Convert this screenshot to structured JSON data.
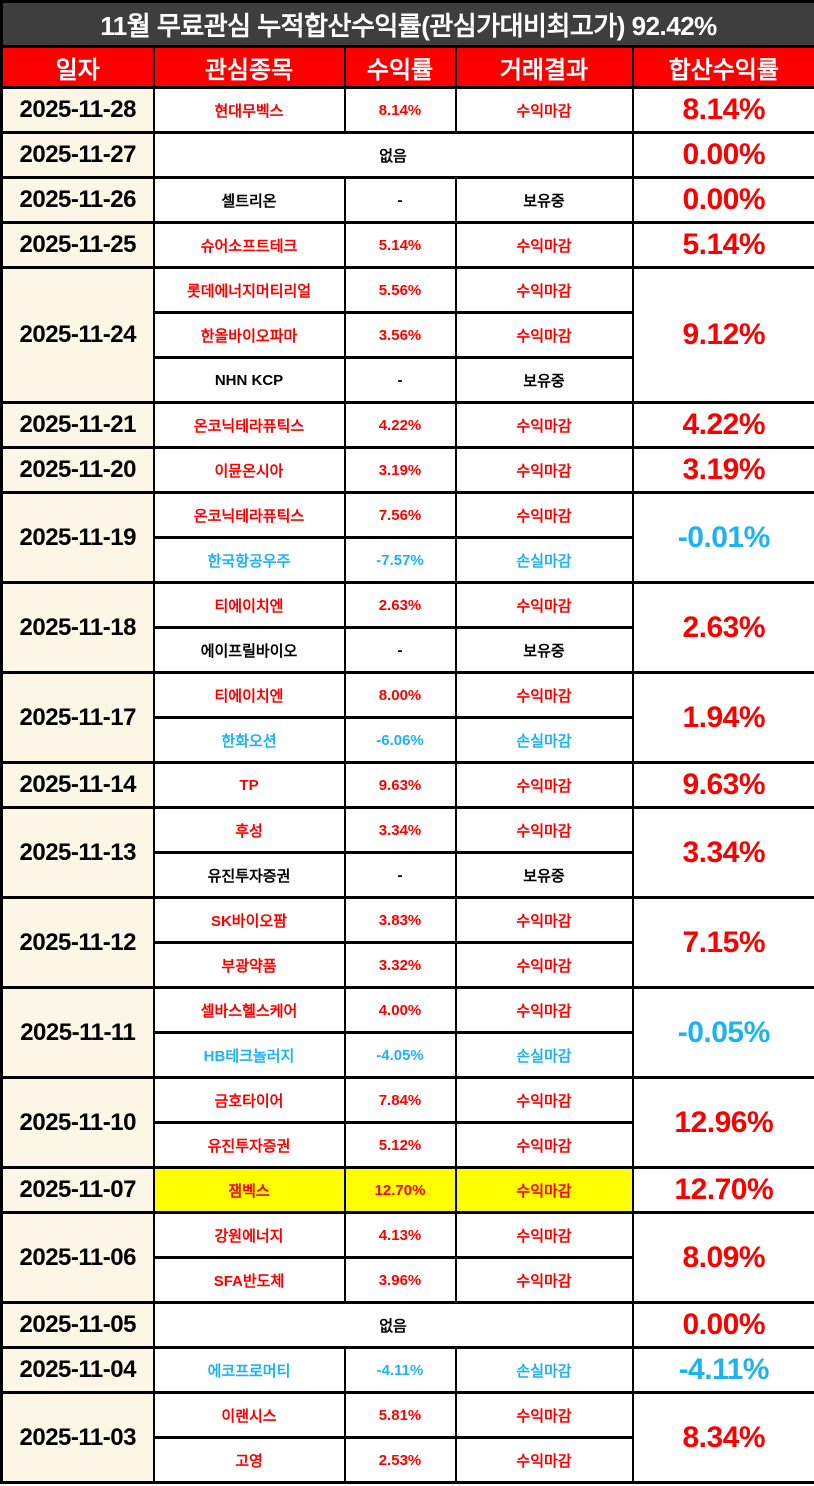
{
  "title": "11월 무료관심 누적합산수익률(관심가대비최고가) 92.42%",
  "columns": [
    "일자",
    "관심종목",
    "수익률",
    "거래결과",
    "합산수익률"
  ],
  "colors": {
    "title_bg": "#3E3E3E",
    "header_bg": "#FC0000",
    "date_bg": "#FBF6E6",
    "profit": "#FC0000",
    "loss": "#1EB2F1",
    "neutral": "#000000",
    "highlight": "#FFFF00"
  },
  "none_label": "없음",
  "groups": [
    {
      "date": "2025-11-28",
      "total": "8.14%",
      "tc": "profit",
      "entries": [
        {
          "stock": "현대무벡스",
          "ret": "8.14%",
          "res": "수익마감",
          "c": "profit"
        }
      ]
    },
    {
      "date": "2025-11-27",
      "total": "0.00%",
      "tc": "profit",
      "entries": [
        {
          "none": true
        }
      ]
    },
    {
      "date": "2025-11-26",
      "total": "0.00%",
      "tc": "profit",
      "entries": [
        {
          "stock": "셀트리온",
          "ret": "-",
          "res": "보유중",
          "c": "neutral"
        }
      ]
    },
    {
      "date": "2025-11-25",
      "total": "5.14%",
      "tc": "profit",
      "entries": [
        {
          "stock": "슈어소프트테크",
          "ret": "5.14%",
          "res": "수익마감",
          "c": "profit"
        }
      ]
    },
    {
      "date": "2025-11-24",
      "total": "9.12%",
      "tc": "profit",
      "entries": [
        {
          "stock": "롯데에너지머티리얼",
          "ret": "5.56%",
          "res": "수익마감",
          "c": "profit"
        },
        {
          "stock": "한올바이오파마",
          "ret": "3.56%",
          "res": "수익마감",
          "c": "profit"
        },
        {
          "stock": "NHN KCP",
          "ret": "-",
          "res": "보유중",
          "c": "neutral"
        }
      ]
    },
    {
      "date": "2025-11-21",
      "total": "4.22%",
      "tc": "profit",
      "entries": [
        {
          "stock": "온코닉테라퓨틱스",
          "ret": "4.22%",
          "res": "수익마감",
          "c": "profit"
        }
      ]
    },
    {
      "date": "2025-11-20",
      "total": "3.19%",
      "tc": "profit",
      "entries": [
        {
          "stock": "이뮨온시아",
          "ret": "3.19%",
          "res": "수익마감",
          "c": "profit"
        }
      ]
    },
    {
      "date": "2025-11-19",
      "total": "-0.01%",
      "tc": "loss",
      "entries": [
        {
          "stock": "온코닉테라퓨틱스",
          "ret": "7.56%",
          "res": "수익마감",
          "c": "profit"
        },
        {
          "stock": "한국항공우주",
          "ret": "-7.57%",
          "res": "손실마감",
          "c": "loss"
        }
      ]
    },
    {
      "date": "2025-11-18",
      "total": "2.63%",
      "tc": "profit",
      "entries": [
        {
          "stock": "티에이치엔",
          "ret": "2.63%",
          "res": "수익마감",
          "c": "profit"
        },
        {
          "stock": "에이프릴바이오",
          "ret": "-",
          "res": "보유중",
          "c": "neutral"
        }
      ]
    },
    {
      "date": "2025-11-17",
      "total": "1.94%",
      "tc": "profit",
      "entries": [
        {
          "stock": "티에이치엔",
          "ret": "8.00%",
          "res": "수익마감",
          "c": "profit"
        },
        {
          "stock": "한화오션",
          "ret": "-6.06%",
          "res": "손실마감",
          "c": "loss"
        }
      ]
    },
    {
      "date": "2025-11-14",
      "total": "9.63%",
      "tc": "profit",
      "entries": [
        {
          "stock": "TP",
          "ret": "9.63%",
          "res": "수익마감",
          "c": "profit"
        }
      ]
    },
    {
      "date": "2025-11-13",
      "total": "3.34%",
      "tc": "profit",
      "entries": [
        {
          "stock": "후성",
          "ret": "3.34%",
          "res": "수익마감",
          "c": "profit"
        },
        {
          "stock": "유진투자증권",
          "ret": "-",
          "res": "보유중",
          "c": "neutral"
        }
      ]
    },
    {
      "date": "2025-11-12",
      "total": "7.15%",
      "tc": "profit",
      "entries": [
        {
          "stock": "SK바이오팜",
          "ret": "3.83%",
          "res": "수익마감",
          "c": "profit"
        },
        {
          "stock": "부광약품",
          "ret": "3.32%",
          "res": "수익마감",
          "c": "profit"
        }
      ]
    },
    {
      "date": "2025-11-11",
      "total": "-0.05%",
      "tc": "loss",
      "entries": [
        {
          "stock": "셀바스헬스케어",
          "ret": "4.00%",
          "res": "수익마감",
          "c": "profit"
        },
        {
          "stock": "HB테크놀러지",
          "ret": "-4.05%",
          "res": "손실마감",
          "c": "loss"
        }
      ]
    },
    {
      "date": "2025-11-10",
      "total": "12.96%",
      "tc": "profit",
      "entries": [
        {
          "stock": "금호타이어",
          "ret": "7.84%",
          "res": "수익마감",
          "c": "profit"
        },
        {
          "stock": "유진투자증권",
          "ret": "5.12%",
          "res": "수익마감",
          "c": "profit"
        }
      ]
    },
    {
      "date": "2025-11-07",
      "total": "12.70%",
      "tc": "profit",
      "entries": [
        {
          "stock": "잼벡스",
          "ret": "12.70%",
          "res": "수익마감",
          "c": "profit",
          "hl": true
        }
      ]
    },
    {
      "date": "2025-11-06",
      "total": "8.09%",
      "tc": "profit",
      "entries": [
        {
          "stock": "강원에너지",
          "ret": "4.13%",
          "res": "수익마감",
          "c": "profit"
        },
        {
          "stock": "SFA반도체",
          "ret": "3.96%",
          "res": "수익마감",
          "c": "profit"
        }
      ]
    },
    {
      "date": "2025-11-05",
      "total": "0.00%",
      "tc": "profit",
      "entries": [
        {
          "none": true
        }
      ]
    },
    {
      "date": "2025-11-04",
      "total": "-4.11%",
      "tc": "loss",
      "entries": [
        {
          "stock": "에코프로머티",
          "ret": "-4.11%",
          "res": "손실마감",
          "c": "loss"
        }
      ]
    },
    {
      "date": "2025-11-03",
      "total": "8.34%",
      "tc": "profit",
      "entries": [
        {
          "stock": "이랜시스",
          "ret": "5.81%",
          "res": "수익마감",
          "c": "profit"
        },
        {
          "stock": "고영",
          "ret": "2.53%",
          "res": "수익마감",
          "c": "profit"
        }
      ]
    }
  ]
}
